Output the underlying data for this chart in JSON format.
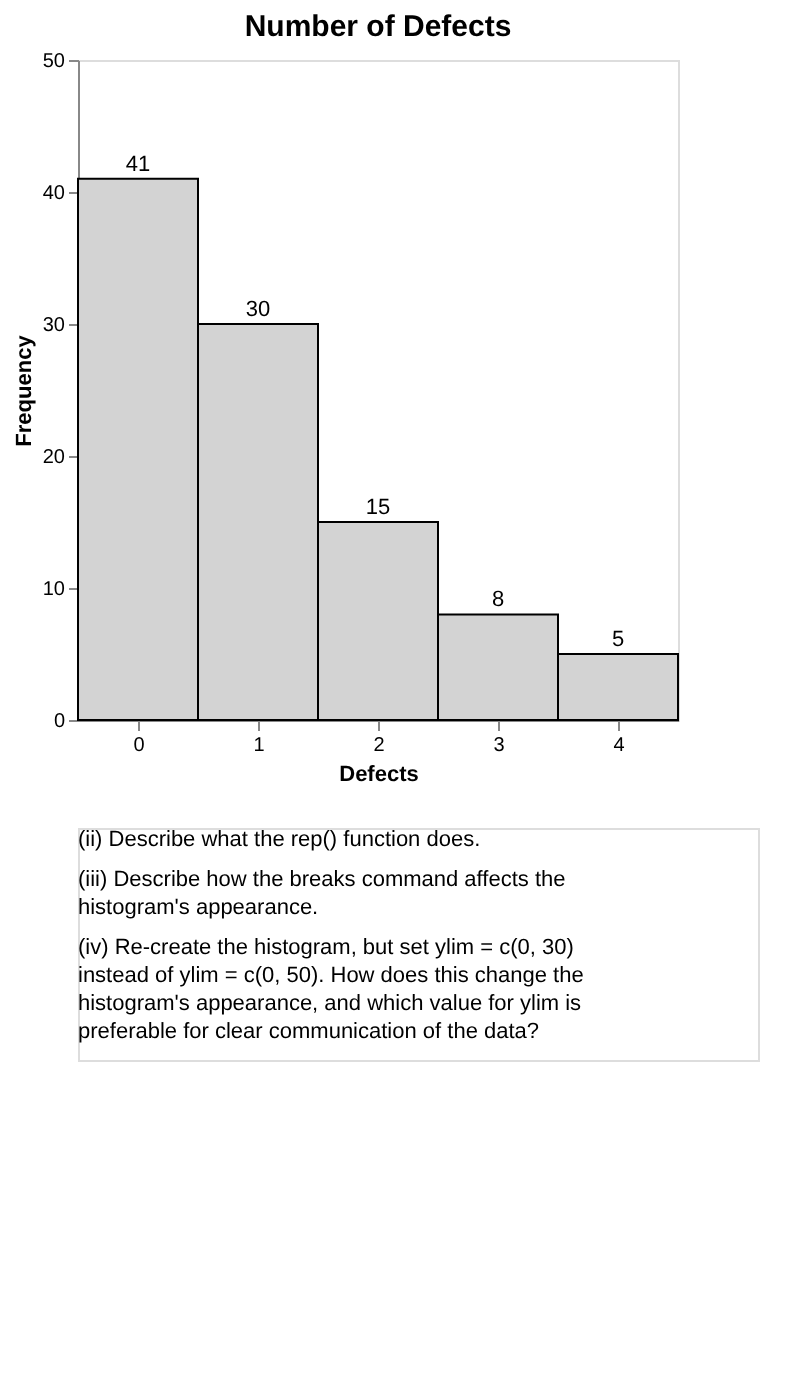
{
  "chart_data": {
    "type": "histogram",
    "title": "Number of Defects",
    "xlabel": "Defects",
    "ylabel": "Frequency",
    "bins": [
      -0.5,
      0.5,
      1.5,
      2.5,
      3.5,
      4.5
    ],
    "values": [
      41,
      30,
      15,
      8,
      5
    ],
    "color": "#d3d3d3",
    "data_labels": true,
    "xlim": [
      -0.5,
      4.5
    ],
    "xticks": [
      0,
      1,
      2,
      3,
      4
    ],
    "ylim": [
      0,
      50
    ],
    "yticks": [
      0,
      10,
      20,
      30,
      40,
      50
    ],
    "grid": false,
    "annotations": [
      "(ii) Describe what the rep() function does.",
      "(iii) Describe how the breaks command affects the histogram's appearance.",
      "(iv) Re-create the histogram, but set ylim = c(0, 30) instead of ylim = c(0, 50). How does this change the histogram's appearance, and which value for ylim is preferable for clear communication of the data?"
    ]
  }
}
